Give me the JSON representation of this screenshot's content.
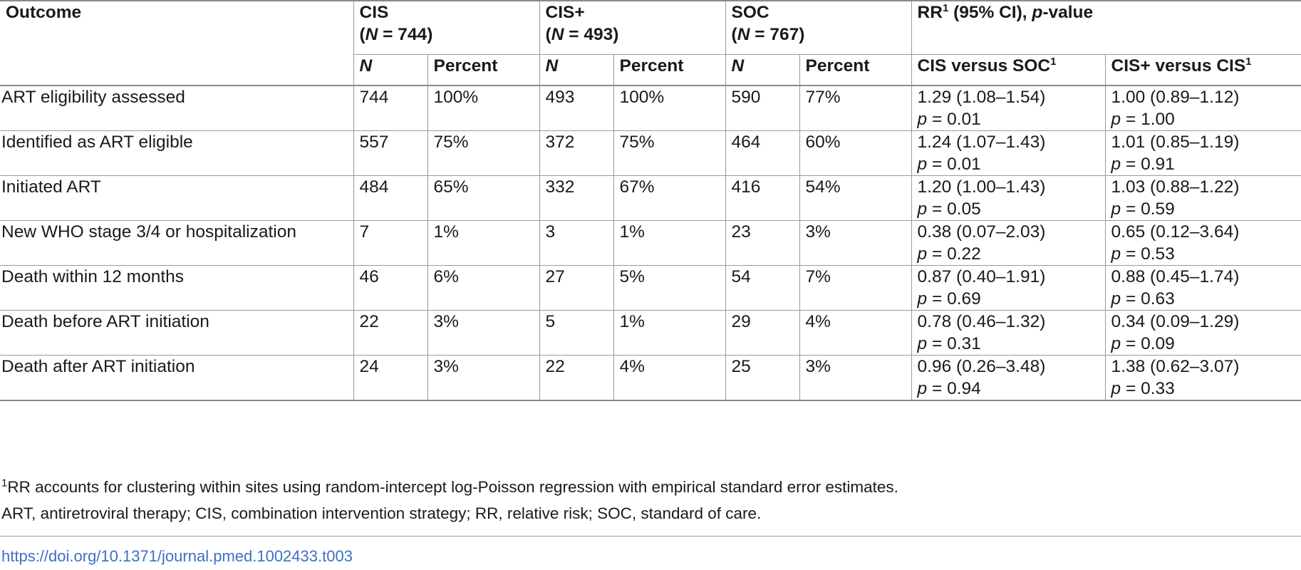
{
  "table": {
    "header": {
      "outcome": "Outcome",
      "groups": [
        {
          "name": "CIS",
          "n_label": "N",
          "n_value": "744"
        },
        {
          "name": "CIS+",
          "n_label": "N",
          "n_value": "493"
        },
        {
          "name": "SOC",
          "n_label": "N",
          "n_value": "767"
        }
      ],
      "rr_title": "RR",
      "rr_sup": "1",
      "rr_rest": " (95% CI), ",
      "rr_pvalue": "p",
      "rr_tail": "-value",
      "sub_n": "N",
      "sub_percent": "Percent",
      "comparisons": [
        {
          "label": "CIS versus SOC",
          "sup": "1"
        },
        {
          "label": "CIS+ versus CIS",
          "sup": "1"
        }
      ]
    },
    "p_prefix": "p",
    "p_eq": " = ",
    "rows": [
      {
        "outcome": "ART eligibility assessed",
        "cis_n": "744",
        "cis_pct": "100%",
        "cisplus_n": "493",
        "cisplus_pct": "100%",
        "soc_n": "590",
        "soc_pct": "77%",
        "rr1": "1.29 (1.08–1.54)",
        "p1": "0.01",
        "rr2": "1.00 (0.89–1.12)",
        "p2": "1.00"
      },
      {
        "outcome": "Identified as ART eligible",
        "cis_n": "557",
        "cis_pct": "75%",
        "cisplus_n": "372",
        "cisplus_pct": "75%",
        "soc_n": "464",
        "soc_pct": "60%",
        "rr1": "1.24 (1.07–1.43)",
        "p1": "0.01",
        "rr2": "1.01 (0.85–1.19)",
        "p2": "0.91"
      },
      {
        "outcome": "Initiated ART",
        "cis_n": "484",
        "cis_pct": "65%",
        "cisplus_n": "332",
        "cisplus_pct": "67%",
        "soc_n": "416",
        "soc_pct": "54%",
        "rr1": "1.20 (1.00–1.43)",
        "p1": "0.05",
        "rr2": "1.03 (0.88–1.22)",
        "p2": "0.59"
      },
      {
        "outcome": "New WHO stage 3/4 or hospitalization",
        "cis_n": "7",
        "cis_pct": "1%",
        "cisplus_n": "3",
        "cisplus_pct": "1%",
        "soc_n": "23",
        "soc_pct": "3%",
        "rr1": "0.38 (0.07–2.03)",
        "p1": "0.22",
        "rr2": "0.65 (0.12–3.64)",
        "p2": "0.53"
      },
      {
        "outcome": "Death within 12 months",
        "cis_n": "46",
        "cis_pct": "6%",
        "cisplus_n": "27",
        "cisplus_pct": "5%",
        "soc_n": "54",
        "soc_pct": "7%",
        "rr1": "0.87 (0.40–1.91)",
        "p1": "0.69",
        "rr2": "0.88 (0.45–1.74)",
        "p2": "0.63"
      },
      {
        "outcome": "Death before ART initiation",
        "cis_n": "22",
        "cis_pct": "3%",
        "cisplus_n": "5",
        "cisplus_pct": "1%",
        "soc_n": "29",
        "soc_pct": "4%",
        "rr1": "0.78 (0.46–1.32)",
        "p1": "0.31",
        "rr2": "0.34 (0.09–1.29)",
        "p2": "0.09"
      },
      {
        "outcome": "Death after ART initiation",
        "cis_n": "24",
        "cis_pct": "3%",
        "cisplus_n": "22",
        "cisplus_pct": "4%",
        "soc_n": "25",
        "soc_pct": "3%",
        "rr1": "0.96 (0.26–3.48)",
        "p1": "0.94",
        "rr2": "1.38 (0.62–3.07)",
        "p2": "0.33"
      }
    ]
  },
  "footnotes": {
    "note1_sup": "1",
    "note1": "RR accounts for clustering within sites using random-intercept log-Poisson regression with empirical standard error estimates.",
    "abbreviations": "ART, antiretroviral therapy; CIS, combination intervention strategy; RR, relative risk; SOC, standard of care."
  },
  "doi": "https://doi.org/10.1371/journal.pmed.1002433.t003",
  "colors": {
    "text": "#1a1a1a",
    "rule": "#9a9a9a",
    "link": "#3f6fc4"
  }
}
